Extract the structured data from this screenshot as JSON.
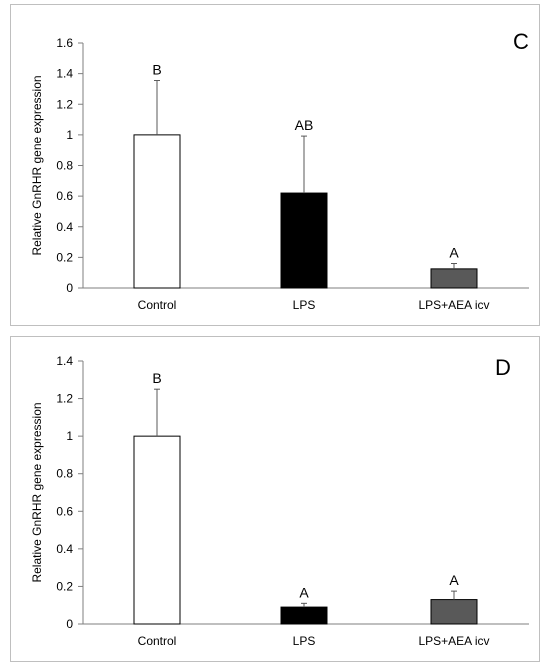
{
  "chart_data": [
    {
      "type": "bar",
      "panel_label": "C",
      "ylabel": "Relative GnRHR gene expression",
      "ylim": [
        0,
        1.6
      ],
      "yticks": [
        0,
        0.2,
        0.4,
        0.6,
        0.8,
        1,
        1.2,
        1.4,
        1.6
      ],
      "yticklabels": [
        "0",
        "0.2",
        "0.4",
        "0.6",
        "0.8",
        "1",
        "1.2",
        "1.4",
        "1.6"
      ],
      "categories": [
        "Control",
        "LPS",
        "LPS+AEA icv"
      ],
      "values": [
        1.0,
        0.62,
        0.125
      ],
      "errors": [
        0.355,
        0.372,
        0.035
      ],
      "significance": [
        "B",
        "AB",
        "A"
      ],
      "colors": [
        "#ffffff",
        "#000000",
        "#595959"
      ],
      "grid": false
    },
    {
      "type": "bar",
      "panel_label": "D",
      "ylabel": "Relative GnRHR gene expression",
      "ylim": [
        0,
        1.4
      ],
      "yticks": [
        0,
        0.2,
        0.4,
        0.6,
        0.8,
        1,
        1.2,
        1.4
      ],
      "yticklabels": [
        "0",
        "0.2",
        "0.4",
        "0.6",
        "0.8",
        "1",
        "1.2",
        "1.4"
      ],
      "categories": [
        "Control",
        "LPS",
        "LPS+AEA icv"
      ],
      "values": [
        1.0,
        0.09,
        0.13
      ],
      "errors": [
        0.25,
        0.02,
        0.045
      ],
      "significance": [
        "B",
        "A",
        "A"
      ],
      "colors": [
        "#ffffff",
        "#000000",
        "#595959"
      ],
      "grid": false
    }
  ]
}
